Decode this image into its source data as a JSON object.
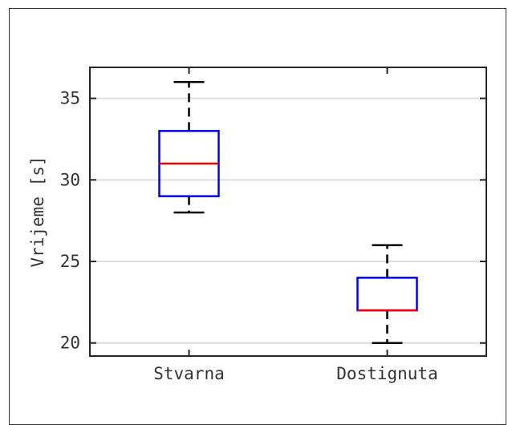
{
  "chart_data": {
    "type": "box",
    "categories": [
      "Stvarna",
      "Dostignuta"
    ],
    "boxes": [
      {
        "category": "Stvarna",
        "min": 28,
        "q1": 29,
        "median": 31,
        "q3": 33,
        "max": 36
      },
      {
        "category": "Dostignuta",
        "min": 20,
        "q1": 22,
        "median": 22,
        "q3": 24,
        "max": 26
      }
    ],
    "ylabel": "Vrijeme [s]",
    "xlabel": "",
    "title": "",
    "ylim": [
      19.2,
      36.9
    ],
    "yticks": [
      20,
      25,
      30,
      35
    ],
    "ytick_labels": [
      "20",
      "25",
      "30",
      "35"
    ],
    "grid": "horizontal",
    "colors": {
      "box": "#0000ee",
      "median": "#ee0000",
      "whisker": "#000000",
      "grid": "#dddddd",
      "axes": "#262626"
    }
  }
}
